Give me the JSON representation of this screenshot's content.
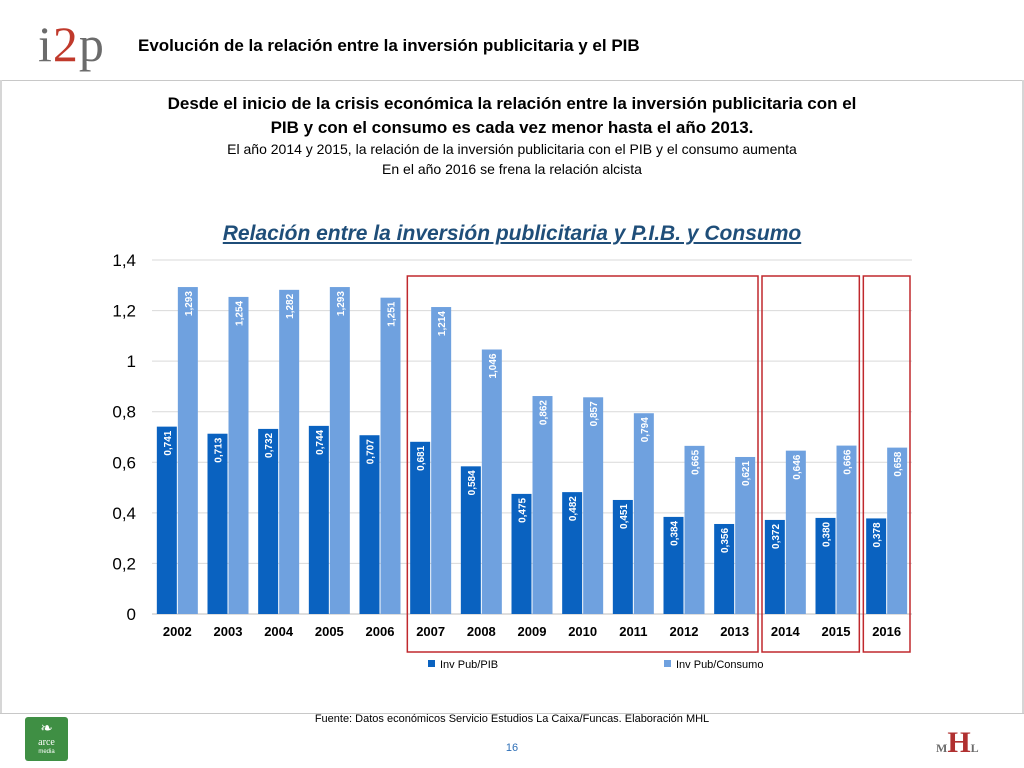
{
  "header": {
    "logo_text_left": "i",
    "logo_text_mid": "2",
    "logo_text_right": "p",
    "title": "Evolución de la relación entre la inversión publicitaria y el PIB"
  },
  "intro": {
    "line1": "Desde el inicio de la crisis económica la relación entre la inversión publicitaria con el",
    "line2": "PIB y con el consumo es cada vez menor hasta el año 2013.",
    "line3": "El año 2014 y 2015, la relación de la inversión publicitaria con el PIB y el consumo aumenta",
    "line4": "En el año 2016 se frena la relación alcista"
  },
  "chart_data": {
    "type": "bar",
    "title": "Relación entre la inversión publicitaria y P.I.B. y Consumo",
    "categories": [
      "2002",
      "2003",
      "2004",
      "2005",
      "2006",
      "2007",
      "2008",
      "2009",
      "2010",
      "2011",
      "2012",
      "2013",
      "2014",
      "2015",
      "2016"
    ],
    "series": [
      {
        "name": "Inv Pub/PIB",
        "color": "#0a62c0",
        "values": [
          0.741,
          0.713,
          0.732,
          0.744,
          0.707,
          0.681,
          0.584,
          0.475,
          0.482,
          0.451,
          0.384,
          0.356,
          0.372,
          0.38,
          0.378
        ],
        "labels": [
          "0,741",
          "0,713",
          "0,732",
          "0,744",
          "0,707",
          "0,681",
          "0,584",
          "0,475",
          "0,482",
          "0,451",
          "0,384",
          "0,356",
          "0,372",
          "0,380",
          "0,378"
        ]
      },
      {
        "name": "Inv Pub/Consumo",
        "color": "#6fa1df",
        "values": [
          1.293,
          1.254,
          1.282,
          1.293,
          1.251,
          1.214,
          1.046,
          0.862,
          0.857,
          0.794,
          0.665,
          0.621,
          0.646,
          0.666,
          0.658
        ],
        "labels": [
          "1,293",
          "1,254",
          "1,282",
          "1,293",
          "1,251",
          "1,214",
          "1,046",
          "0,862",
          "0,857",
          "0,794",
          "0,665",
          "0,621",
          "0,646",
          "0,666",
          "0,658"
        ]
      }
    ],
    "ylim": [
      0,
      1.4
    ],
    "yticks": [
      0,
      0.2,
      0.4,
      0.6,
      0.8,
      1,
      1.2,
      1.4
    ],
    "ytick_labels": [
      "0",
      "0,2",
      "0,4",
      "0,6",
      "0,8",
      "1",
      "1,2",
      "1,4"
    ],
    "grid": true,
    "legend_position": "bottom",
    "highlight_groups": [
      [
        "2007",
        "2013"
      ],
      [
        "2014",
        "2015"
      ],
      [
        "2016",
        "2016"
      ]
    ],
    "highlight_color": "#c0282d"
  },
  "footer": {
    "source": "Fuente: Datos económicos Servicio Estudios La Caixa/Funcas. Elaboración MHL",
    "page_number": "16",
    "badge_line1": "arce",
    "badge_line2": "media",
    "right_logo_left": "M",
    "right_logo_mid": "H",
    "right_logo_right": "L"
  }
}
